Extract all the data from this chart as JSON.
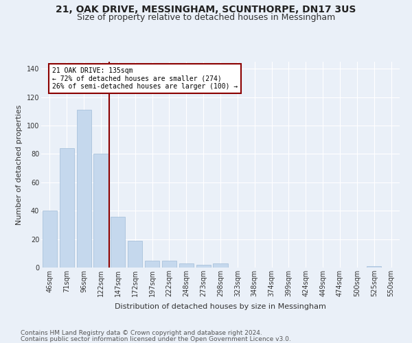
{
  "title": "21, OAK DRIVE, MESSINGHAM, SCUNTHORPE, DN17 3US",
  "subtitle": "Size of property relative to detached houses in Messingham",
  "xlabel": "Distribution of detached houses by size in Messingham",
  "ylabel": "Number of detached properties",
  "categories": [
    "46sqm",
    "71sqm",
    "96sqm",
    "122sqm",
    "147sqm",
    "172sqm",
    "197sqm",
    "222sqm",
    "248sqm",
    "273sqm",
    "298sqm",
    "323sqm",
    "348sqm",
    "374sqm",
    "399sqm",
    "424sqm",
    "449sqm",
    "474sqm",
    "500sqm",
    "525sqm",
    "550sqm"
  ],
  "bar_heights": [
    40,
    84,
    111,
    80,
    36,
    19,
    5,
    5,
    3,
    2,
    3,
    0,
    0,
    0,
    0,
    0,
    0,
    0,
    0,
    1,
    0
  ],
  "bar_color": "#c5d8ed",
  "bar_edgecolor": "#a0bcd8",
  "bar_linewidth": 0.5,
  "vline_x": 3.5,
  "vline_color": "#8b0000",
  "annotation_line1": "21 OAK DRIVE: 135sqm",
  "annotation_line2": "← 72% of detached houses are smaller (274)",
  "annotation_line3": "26% of semi-detached houses are larger (100) →",
  "annotation_box_color": "#8b0000",
  "annotation_box_fill": "#ffffff",
  "ylim": [
    0,
    145
  ],
  "yticks": [
    0,
    20,
    40,
    60,
    80,
    100,
    120,
    140
  ],
  "footnote1": "Contains HM Land Registry data © Crown copyright and database right 2024.",
  "footnote2": "Contains public sector information licensed under the Open Government Licence v3.0.",
  "bg_color": "#eaf0f8",
  "title_fontsize": 10,
  "subtitle_fontsize": 9,
  "xlabel_fontsize": 8,
  "ylabel_fontsize": 8,
  "tick_fontsize": 7,
  "footnote_fontsize": 6.5,
  "annot_fontsize": 7
}
